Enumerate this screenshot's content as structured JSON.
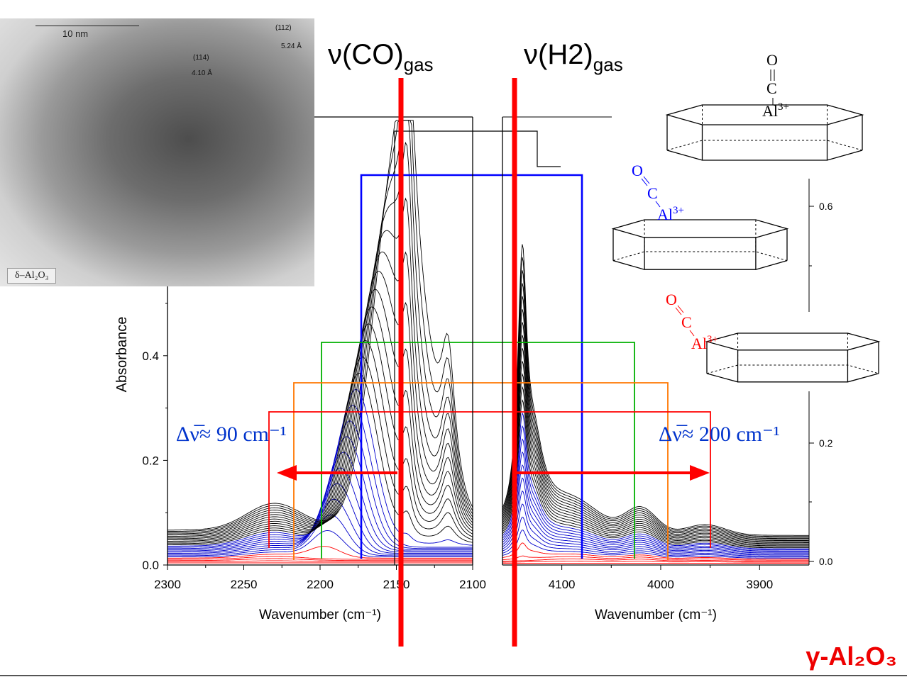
{
  "chart_data": {
    "type": "line",
    "ylabel": "Absorbance",
    "left_panel": {
      "xlabel": "Wavenumber (cm⁻¹)",
      "xlim": [
        2300,
        2100
      ],
      "x_ticks": [
        "2300",
        "2250",
        "2200",
        "2150",
        "2100"
      ],
      "ylim": [
        0,
        0.58
      ],
      "y_ticks": [
        "0.0",
        "0.2",
        "0.4"
      ],
      "peaks": [
        2150,
        2175,
        2197
      ],
      "gas_doublet": [
        2143,
        2113
      ],
      "annotation": "Δν̅≈ 90 cm⁻¹"
    },
    "right_panel": {
      "xlabel": "Wavenumber (cm⁻¹)",
      "xlim": [
        4160,
        3850
      ],
      "x_ticks": [
        "4100",
        "4000",
        "3900"
      ],
      "y_ticks": [
        "0.6",
        "0.2",
        "0.0"
      ],
      "peaks": [
        4142,
        4090
      ],
      "annotation": "Δν̅≈ 200 cm⁻¹"
    },
    "markers": {
      "co_gas": "ν(CO)",
      "co_gas_sub": "gas",
      "h2_gas": "ν(H2)",
      "h2_gas_sub": "gas"
    },
    "bracket_colors": [
      "#0000ff",
      "#00b000",
      "#ff7700",
      "#ff0000"
    ]
  },
  "inset": {
    "scale_label": "10  nm",
    "hkl_112": "(112)",
    "d_112": "5.24 Å",
    "hkl_114": "(114)",
    "d_114": "4.10 Å",
    "phase_label": "δ–Al₂O₃"
  },
  "structures": {
    "o": "O",
    "c": "C",
    "al": "Al",
    "al_charge": "3+"
  },
  "corner_label": "γ-Al₂O₃"
}
